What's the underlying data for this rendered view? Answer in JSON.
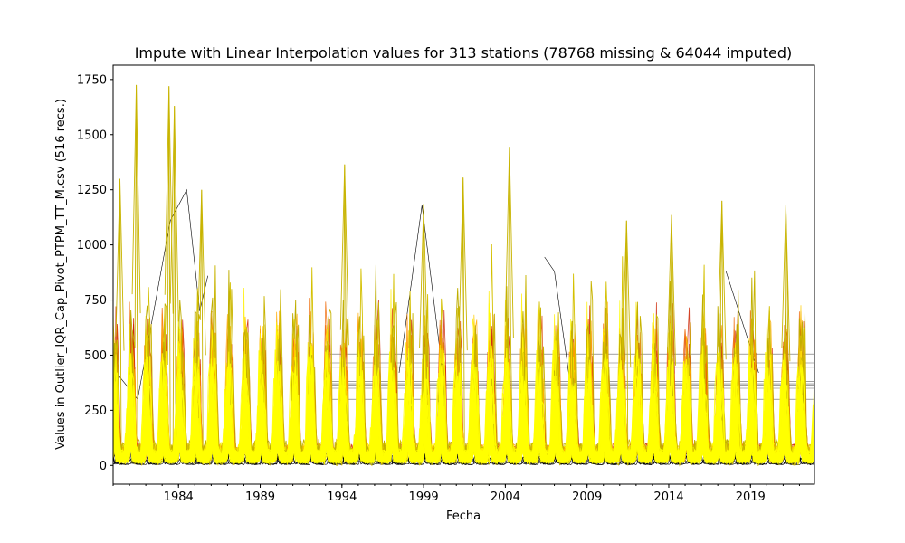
{
  "chart_data": {
    "type": "line",
    "title": "Impute with Linear Interpolation values for 313 stations (78768 missing & 64044 imputed)",
    "xlabel": "Fecha",
    "ylabel": "Values in Outlier_IQR_Cap_Pivot_PTPM_TT_M.csv (516 recs.)",
    "xlim": [
      "1980-01",
      "2022-12"
    ],
    "ylim": [
      -85,
      1815
    ],
    "x_ticks": [
      1984,
      1989,
      1994,
      1999,
      2004,
      2009,
      2014,
      2019
    ],
    "x_tick_labels": [
      "1984",
      "1989",
      "1994",
      "1999",
      "2004",
      "2009",
      "2014",
      "2019"
    ],
    "y_ticks": [
      0,
      250,
      500,
      750,
      1000,
      1250,
      1500,
      1750
    ],
    "y_tick_labels": [
      "0",
      "250",
      "500",
      "750",
      "1000",
      "1250",
      "1500",
      "1750"
    ],
    "grid": false,
    "legend": "none",
    "stations": 313,
    "records": 516,
    "missing": 78768,
    "imputed": 64044,
    "colormap": [
      "#000000",
      "#cc2200",
      "#ff8800",
      "#ffff00"
    ],
    "series_envelope": {
      "description_hidden": true,
      "peaks": [
        {
          "x": "1981-06",
          "y": 1725
        },
        {
          "x": "1983-06",
          "y": 1720
        },
        {
          "x": "1983-10",
          "y": 1630
        },
        {
          "x": "1980-06",
          "y": 1300
        },
        {
          "x": "1985-06",
          "y": 1250
        },
        {
          "x": "1994-03",
          "y": 1365
        },
        {
          "x": "1999-01",
          "y": 1185
        },
        {
          "x": "2001-06",
          "y": 1305
        },
        {
          "x": "2004-04",
          "y": 1445
        },
        {
          "x": "2011-06",
          "y": 1110
        },
        {
          "x": "2014-03",
          "y": 1135
        },
        {
          "x": "2017-04",
          "y": 1200
        },
        {
          "x": "2021-03",
          "y": 1180
        }
      ],
      "flat_imputed_levels": [
        505,
        465,
        445,
        380,
        370,
        365,
        350,
        300
      ]
    }
  }
}
